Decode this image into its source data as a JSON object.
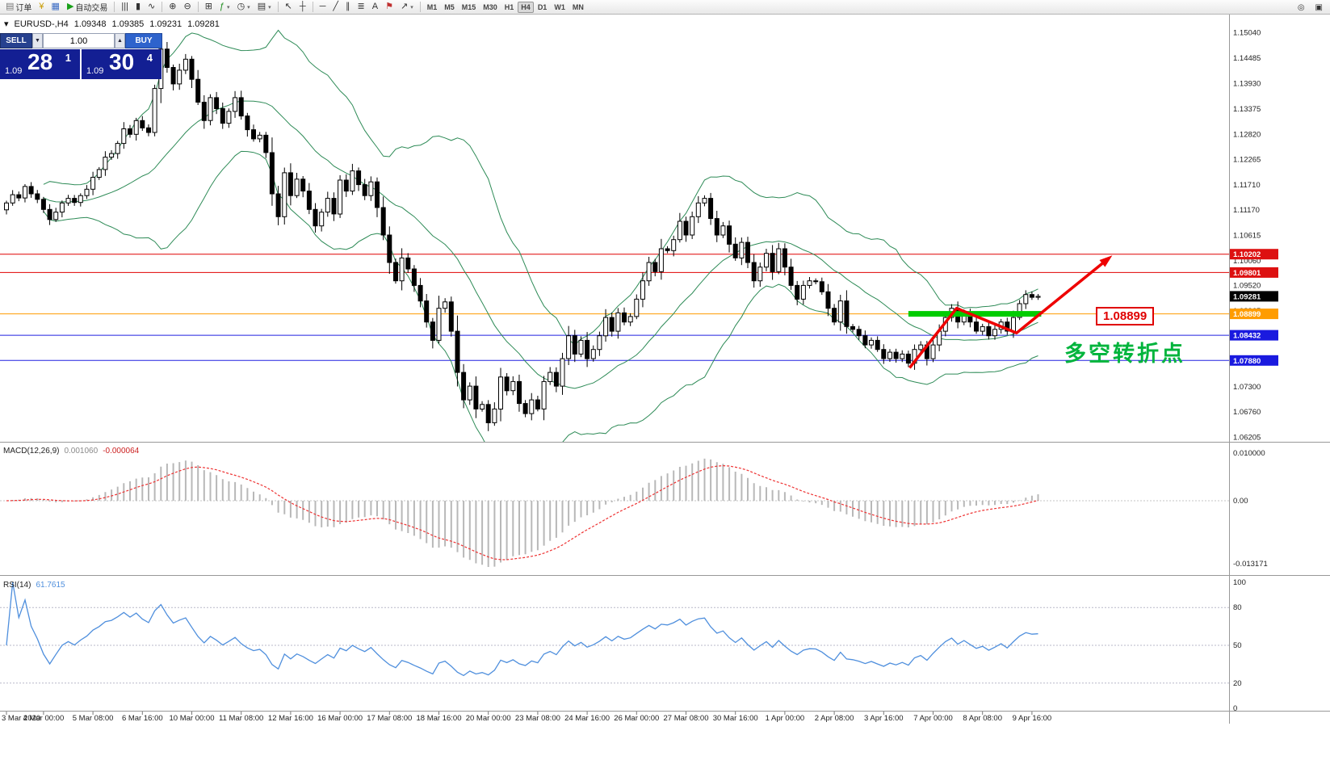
{
  "toolbar": {
    "left_buttons": [
      {
        "name": "new-order-button",
        "glyph": "▤",
        "color": "#777",
        "label": "订单"
      },
      {
        "name": "funds-icon-button",
        "glyph": "¥",
        "color": "#c89b00",
        "label": ""
      },
      {
        "name": "new-chart-icon-button",
        "glyph": "▦",
        "color": "#3a6bc4",
        "label": ""
      }
    ],
    "auto_trading": {
      "glyph": "▶",
      "color": "#18a018",
      "label": "自动交易"
    },
    "tools": [
      {
        "name": "bar-chart-icon",
        "glyph": "|||"
      },
      {
        "name": "candlestick-chart-icon",
        "glyph": "▮"
      },
      {
        "name": "line-chart-icon",
        "glyph": "∿"
      },
      {
        "sep": true
      },
      {
        "name": "zoom-in-icon",
        "glyph": "⊕"
      },
      {
        "name": "zoom-out-icon",
        "glyph": "⊖"
      },
      {
        "sep": true
      },
      {
        "name": "tile-windows-icon",
        "glyph": "⊞"
      },
      {
        "name": "indicators-icon",
        "glyph": "ƒ",
        "color": "#1f8f1f",
        "caret": true
      },
      {
        "name": "periods-icon",
        "glyph": "◷",
        "caret": true
      },
      {
        "name": "templates-icon",
        "glyph": "▤",
        "caret": true
      },
      {
        "sep": true
      },
      {
        "name": "cursor-icon",
        "glyph": "↖"
      },
      {
        "name": "crosshair-icon",
        "glyph": "┼"
      },
      {
        "sep": true
      },
      {
        "name": "horizontal-line-icon",
        "glyph": "─"
      },
      {
        "name": "trendline-icon",
        "glyph": "╱"
      },
      {
        "name": "channel-icon",
        "glyph": "∥"
      },
      {
        "name": "fibonacci-icon",
        "glyph": "≣"
      },
      {
        "name": "text-icon",
        "glyph": "A"
      },
      {
        "name": "label-icon",
        "glyph": "⚑",
        "color": "#c03030"
      },
      {
        "name": "arrows-icon",
        "glyph": "↗",
        "caret": true
      },
      {
        "sep": true
      }
    ],
    "timeframes": [
      "M1",
      "M5",
      "M15",
      "M30",
      "H1",
      "H4",
      "D1",
      "W1",
      "MN"
    ],
    "active_timeframe": "H4",
    "right_icons": [
      {
        "name": "search-icon",
        "glyph": "◎"
      },
      {
        "name": "layout-icon",
        "glyph": "▣"
      }
    ]
  },
  "quote_bar": {
    "icon": "▾",
    "symbol": "EURUSD-,H4",
    "open": "1.09348",
    "high": "1.09385",
    "low": "1.09231",
    "close": "1.09281"
  },
  "trade_panel": {
    "sell_label": "SELL",
    "buy_label": "BUY",
    "volume": "1.00",
    "spin_down_glyph": "▼",
    "spin_up_glyph": "▲",
    "bid": {
      "prefix": "1.09",
      "big": "28",
      "sup": "1"
    },
    "ask": {
      "prefix": "1.09",
      "big": "30",
      "sup": "4"
    }
  },
  "annotations": {
    "price_box_text": "1.08899",
    "price_box_color": "#e00000",
    "turning_point_text": "多空转折点",
    "turning_point_color": "#00b43c"
  },
  "chart_data": {
    "type": "candlestick",
    "symbol": "EURUSD-",
    "timeframe": "H4",
    "ohlc_display": {
      "open": 1.09348,
      "high": 1.09385,
      "low": 1.09231,
      "close": 1.09281
    },
    "ylim": [
      1.0614,
      1.154
    ],
    "y_axis_ticks": [
      "1.15040",
      "1.14485",
      "1.13930",
      "1.13375",
      "1.12820",
      "1.12265",
      "1.11710",
      "1.11170",
      "1.10615",
      "1.10060",
      "1.09520",
      "1.08965",
      "1.08410",
      "1.07855",
      "1.07300",
      "1.06760",
      "1.06205"
    ],
    "levels": [
      {
        "price": 1.10202,
        "label": "1.10202",
        "line": "#e00000",
        "bg": "#dd1111"
      },
      {
        "price": 1.09801,
        "label": "1.09801",
        "line": "#e00000",
        "bg": "#dd1111"
      },
      {
        "price": 1.09281,
        "label": "1.09281",
        "line": null,
        "bg": "#000000",
        "current": true
      },
      {
        "price": 1.08899,
        "label": "1.08899",
        "line": "#ff9c00",
        "bg": "#ff9c00"
      },
      {
        "price": 1.08432,
        "label": "1.08432",
        "line": "#2020e0",
        "bg": "#1a1adf"
      },
      {
        "price": 1.0788,
        "label": "1.07880",
        "line": "#2020e0",
        "bg": "#1a1adf"
      }
    ],
    "closes": [
      1.1132,
      1.115,
      1.1143,
      1.1168,
      1.1152,
      1.114,
      1.1118,
      1.1096,
      1.1112,
      1.1132,
      1.1142,
      1.1133,
      1.1148,
      1.1162,
      1.1188,
      1.1205,
      1.1232,
      1.124,
      1.1262,
      1.1294,
      1.1282,
      1.1312,
      1.1296,
      1.1286,
      1.1382,
      1.1468,
      1.1428,
      1.1392,
      1.1422,
      1.1446,
      1.1402,
      1.1352,
      1.1312,
      1.1362,
      1.1338,
      1.1306,
      1.1332,
      1.1362,
      1.1322,
      1.1292,
      1.1272,
      1.128,
      1.1242,
      1.1152,
      1.1102,
      1.1198,
      1.1148,
      1.1184,
      1.1158,
      1.1118,
      1.1082,
      1.1112,
      1.1142,
      1.1108,
      1.1182,
      1.1158,
      1.1202,
      1.1172,
      1.1148,
      1.1178,
      1.1122,
      1.1062,
      1.1002,
      1.0962,
      1.1012,
      1.0988,
      1.0952,
      1.0918,
      1.0872,
      1.0832,
      1.0902,
      1.0916,
      1.0852,
      1.0762,
      1.0702,
      1.0732,
      1.0682,
      1.0692,
      1.0652,
      1.0682,
      1.0752,
      1.0722,
      1.0742,
      1.0694,
      1.0672,
      1.0702,
      1.0682,
      1.0742,
      1.0762,
      1.0732,
      1.0792,
      1.0842,
      1.0802,
      1.0832,
      1.0792,
      1.0812,
      1.0842,
      1.0882,
      1.0852,
      1.0892,
      1.0872,
      1.0884,
      1.0922,
      1.0962,
      1.1002,
      1.0982,
      1.1032,
      1.1028,
      1.1052,
      1.1092,
      1.1062,
      1.1102,
      1.1132,
      1.1142,
      1.1098,
      1.1062,
      1.1082,
      1.1042,
      1.1012,
      1.1046,
      1.1002,
      1.0962,
      1.0992,
      1.1022,
      1.0982,
      1.1032,
      1.0992,
      1.0952,
      1.0922,
      1.0952,
      1.0962,
      1.096,
      1.0938,
      1.0902,
      1.0872,
      1.0918,
      1.0862,
      1.0856,
      1.0842,
      1.0822,
      1.0832,
      1.0812,
      1.0792,
      1.0806,
      1.0792,
      1.0802,
      1.0782,
      1.0812,
      1.0822,
      1.0792,
      1.0822,
      1.0852,
      1.0882,
      1.0902,
      1.0872,
      1.0892,
      1.0872,
      1.0852,
      1.0862,
      1.0842,
      1.0856,
      1.0872,
      1.0852,
      1.0882,
      1.0912,
      1.0932,
      1.0926,
      1.09281
    ],
    "bollinger": {
      "period": 20,
      "deviation": 2,
      "color": "#2e8b57"
    },
    "candle_colors": {
      "bull": "#ffffff",
      "bear": "#000000",
      "outline": "#000000"
    },
    "highlight_segment": {
      "from_idx": 146,
      "to_idx": 167.5,
      "price": 1.08899,
      "color": "#00cc00"
    },
    "trend_arrow": {
      "color": "#ee0000",
      "points": [
        [
          146.2,
          1.0772
        ],
        [
          153.8,
          1.0902
        ],
        [
          163.5,
          1.0848
        ],
        [
          178.5,
          1.1012
        ]
      ]
    },
    "macd": {
      "label": "MACD(12,26,9)",
      "fast": 12,
      "slow": 26,
      "signal": 9,
      "value_main": "0.001060",
      "value_signal": "-0.000064",
      "axis_labels": [
        "0.010000",
        "0.00",
        "-0.013171"
      ],
      "bar_color": "#b8b8b8",
      "signal_color": "#ee3333"
    },
    "rsi": {
      "label": "RSI(14)",
      "period": 14,
      "value": "61.7615",
      "levels": [
        80,
        50,
        20
      ],
      "axis_labels": [
        "100",
        "80",
        "50",
        "20",
        "0"
      ],
      "line_color": "#4f8fdd"
    },
    "x_axis_labels": [
      {
        "text": "3 Mar 2020",
        "idx": 0
      },
      {
        "text": "4 Mar 00:00",
        "idx": 6
      },
      {
        "text": "5 Mar 08:00",
        "idx": 14
      },
      {
        "text": "6 Mar 16:00",
        "idx": 22
      },
      {
        "text": "10 Mar 00:00",
        "idx": 30
      },
      {
        "text": "11 Mar 08:00",
        "idx": 38
      },
      {
        "text": "12 Mar 16:00",
        "idx": 46
      },
      {
        "text": "16 Mar 00:00",
        "idx": 54
      },
      {
        "text": "17 Mar 08:00",
        "idx": 62
      },
      {
        "text": "18 Mar 16:00",
        "idx": 70
      },
      {
        "text": "20 Mar 00:00",
        "idx": 78
      },
      {
        "text": "23 Mar 08:00",
        "idx": 86
      },
      {
        "text": "24 Mar 16:00",
        "idx": 94
      },
      {
        "text": "26 Mar 00:00",
        "idx": 102
      },
      {
        "text": "27 Mar 08:00",
        "idx": 110
      },
      {
        "text": "30 Mar 16:00",
        "idx": 118
      },
      {
        "text": "1 Apr 00:00",
        "idx": 126
      },
      {
        "text": "2 Apr 08:00",
        "idx": 134
      },
      {
        "text": "3 Apr 16:00",
        "idx": 142
      },
      {
        "text": "7 Apr 00:00",
        "idx": 150
      },
      {
        "text": "8 Apr 08:00",
        "idx": 158
      },
      {
        "text": "9 Apr 16:00",
        "idx": 166
      }
    ]
  }
}
